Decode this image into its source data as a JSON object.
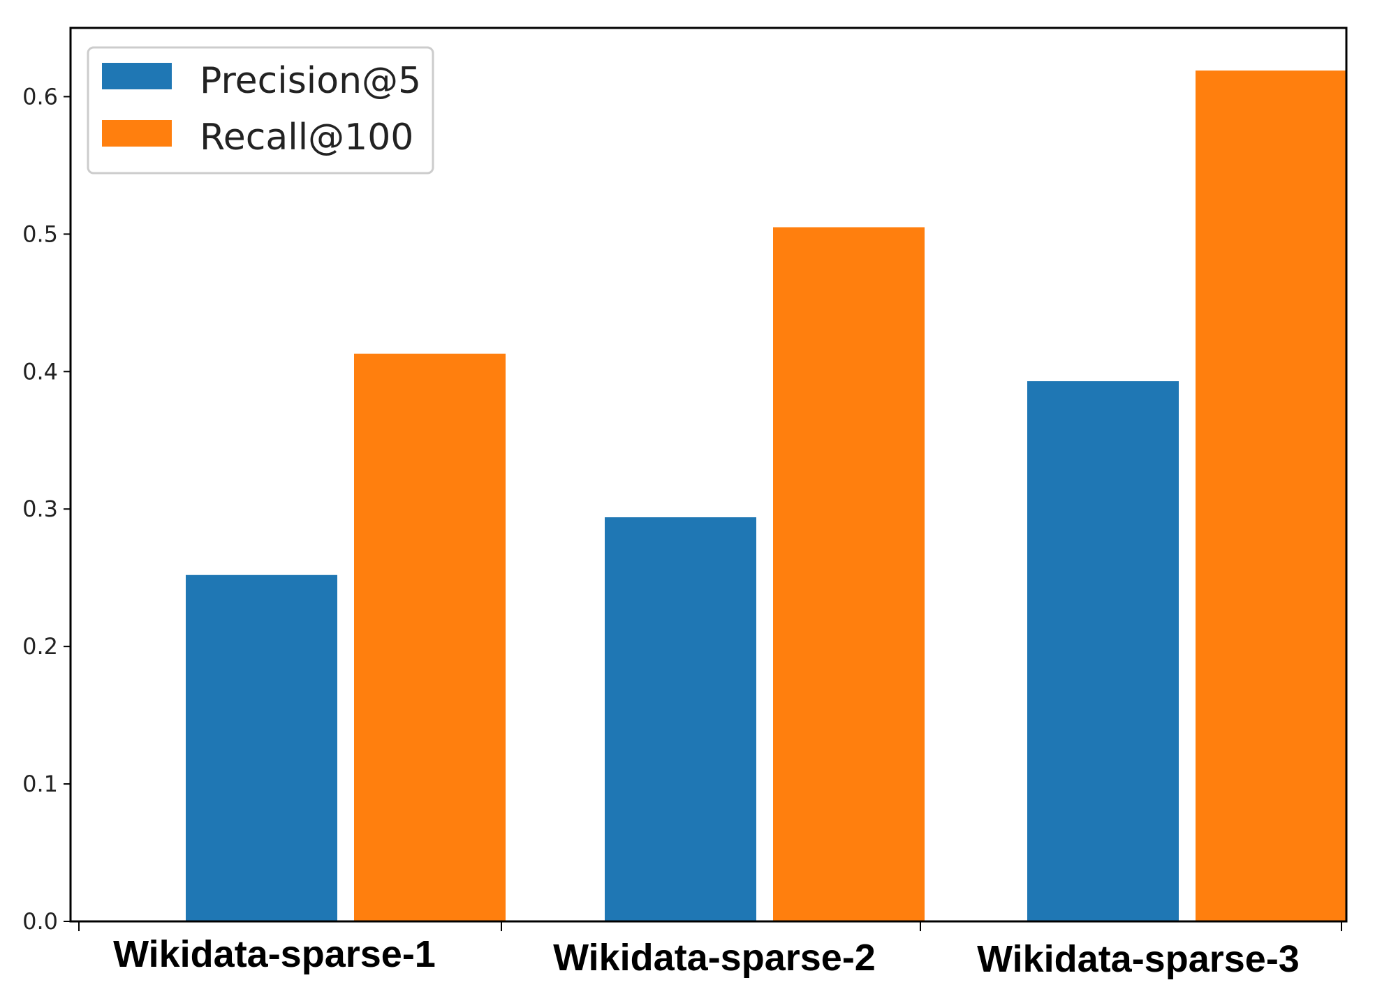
{
  "chart_data": {
    "type": "bar",
    "categories": [
      "Wikidata-sparse-1",
      "Wikidata-sparse-2",
      "Wikidata-sparse-3"
    ],
    "series": [
      {
        "name": "Precision@5",
        "color": "#1f77b4",
        "values": [
          0.252,
          0.294,
          0.393
        ]
      },
      {
        "name": "Recall@100",
        "color": "#ff7f0e",
        "values": [
          0.413,
          0.505,
          0.619
        ]
      }
    ],
    "ylim": [
      0,
      0.65
    ],
    "yticks": [
      "0.0",
      "0.1",
      "0.2",
      "0.3",
      "0.4",
      "0.5",
      "0.6"
    ],
    "title": "",
    "xlabel": "",
    "ylabel": "",
    "legend_position": "top-left",
    "grid": false
  }
}
